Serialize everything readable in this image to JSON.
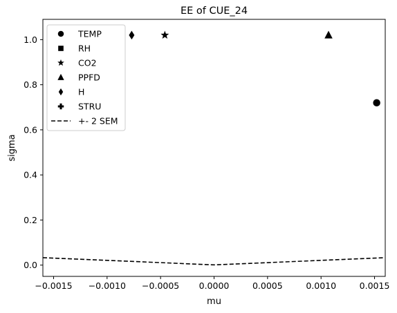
{
  "chart_data": {
    "type": "scatter",
    "title": "EE of CUE_24",
    "xlabel": "mu",
    "ylabel": "sigma",
    "xlim": [
      -0.0016,
      0.0016
    ],
    "ylim": [
      -0.05,
      1.09
    ],
    "xticks": [
      -0.0015,
      -0.001,
      -0.0005,
      0.0,
      0.0005,
      0.001,
      0.0015
    ],
    "xtick_labels": [
      "−0.0015",
      "−0.0010",
      "−0.0005",
      "0.0000",
      "0.0005",
      "0.0010",
      "0.0015"
    ],
    "yticks": [
      0.0,
      0.2,
      0.4,
      0.6,
      0.8,
      1.0
    ],
    "ytick_labels": [
      "0.0",
      "0.2",
      "0.4",
      "0.6",
      "0.8",
      "1.0"
    ],
    "grid": false,
    "legend_position": "upper-left",
    "series": [
      {
        "name": "TEMP",
        "marker": "circle",
        "x": [
          0.00152
        ],
        "y": [
          0.72
        ]
      },
      {
        "name": "RH",
        "marker": "square",
        "x": [],
        "y": []
      },
      {
        "name": "CO2",
        "marker": "star",
        "x": [
          -0.00046
        ],
        "y": [
          1.02
        ]
      },
      {
        "name": "PPFD",
        "marker": "triangle",
        "x": [
          0.00107
        ],
        "y": [
          1.02
        ]
      },
      {
        "name": "H",
        "marker": "diamond",
        "x": [
          -0.00077
        ],
        "y": [
          1.02
        ]
      },
      {
        "name": "STRU",
        "marker": "plus",
        "x": [],
        "y": []
      }
    ],
    "sem_line": {
      "name": "+- 2 SEM",
      "style": "dashed",
      "x": [
        -0.0016,
        -0.0012,
        -0.0008,
        -0.0004,
        0.0,
        0.0004,
        0.0008,
        0.0012,
        0.0016
      ],
      "y": [
        0.033,
        0.025,
        0.017,
        0.009,
        0.001,
        0.009,
        0.017,
        0.025,
        0.033
      ]
    },
    "colors": {
      "marker": "#000000",
      "axes": "#000000",
      "background": "#ffffff"
    }
  }
}
